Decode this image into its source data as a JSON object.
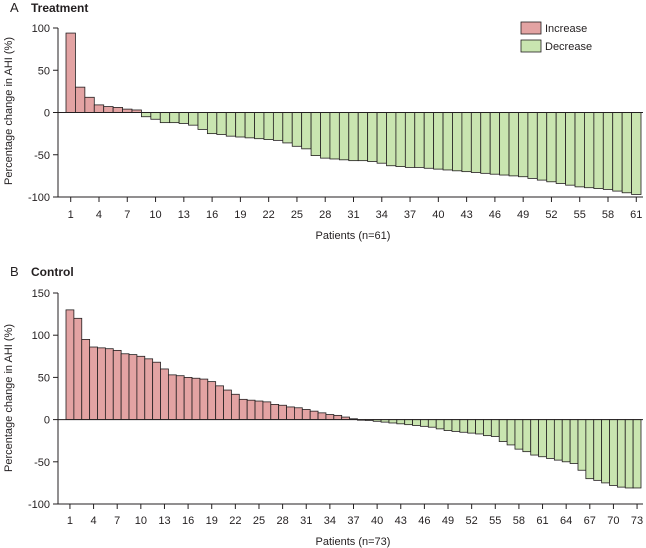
{
  "colors": {
    "increase": "#e3a3a3",
    "decrease": "#c9e5b0",
    "stroke": "#231f20",
    "axis": "#231f20"
  },
  "legend": {
    "increase_label": "Increase",
    "decrease_label": "Decrease",
    "placement": "top-right"
  },
  "chart_data": [
    {
      "type": "bar",
      "panel_letter": "A",
      "title": "Treatment",
      "xlabel": "Patients (n=61)",
      "ylabel": "Percentage change in AHI (%)",
      "ylim": [
        -100,
        100
      ],
      "yticks": [
        100,
        50,
        0,
        -50,
        -100
      ],
      "xtick_labels": [
        "1",
        "4",
        "7",
        "10",
        "13",
        "16",
        "19",
        "22",
        "25",
        "28",
        "31",
        "34",
        "37",
        "40",
        "43",
        "46",
        "49",
        "52",
        "55",
        "58",
        "61"
      ],
      "xtick_positions": [
        1,
        4,
        7,
        10,
        13,
        16,
        19,
        22,
        25,
        28,
        31,
        34,
        37,
        40,
        43,
        46,
        49,
        52,
        55,
        58,
        61
      ],
      "values": [
        94,
        30,
        18,
        9,
        7,
        6,
        4,
        3,
        -5,
        -8,
        -12,
        -12,
        -13,
        -15,
        -20,
        -25,
        -26,
        -28,
        -29,
        -30,
        -31,
        -32,
        -33,
        -36,
        -40,
        -43,
        -51,
        -54,
        -55,
        -56,
        -57,
        -57,
        -58,
        -60,
        -63,
        -64,
        -65,
        -65,
        -66,
        -67,
        -68,
        -69,
        -70,
        -71,
        -72,
        -73,
        -74,
        -75,
        -76,
        -78,
        -80,
        -82,
        -84,
        -86,
        -88,
        -89,
        -90,
        -91,
        -93,
        -95,
        -97
      ]
    },
    {
      "type": "bar",
      "panel_letter": "B",
      "title": "Control",
      "xlabel": "Patients (n=73)",
      "ylabel": "Percentage change in AHI (%)",
      "ylim": [
        -100,
        150
      ],
      "yticks": [
        150,
        100,
        50,
        0,
        -50,
        -100
      ],
      "xtick_labels": [
        "1",
        "4",
        "7",
        "10",
        "13",
        "16",
        "19",
        "22",
        "25",
        "28",
        "31",
        "34",
        "37",
        "40",
        "43",
        "46",
        "49",
        "52",
        "55",
        "58",
        "61",
        "64",
        "67",
        "70",
        "73"
      ],
      "xtick_positions": [
        1,
        4,
        7,
        10,
        13,
        16,
        19,
        22,
        25,
        28,
        31,
        34,
        37,
        40,
        43,
        46,
        49,
        52,
        55,
        58,
        61,
        64,
        67,
        70,
        73
      ],
      "values": [
        130,
        120,
        95,
        86,
        85,
        84,
        82,
        78,
        77,
        75,
        72,
        68,
        60,
        53,
        52,
        50,
        49,
        48,
        45,
        40,
        35,
        30,
        24,
        23,
        22,
        21,
        18,
        17,
        15,
        14,
        12,
        10,
        8,
        6,
        5,
        3,
        1,
        0,
        -1,
        -2,
        -3,
        -4,
        -5,
        -6,
        -7,
        -8,
        -9,
        -11,
        -13,
        -14,
        -15,
        -16,
        -17,
        -19,
        -20,
        -26,
        -30,
        -35,
        -38,
        -42,
        -44,
        -46,
        -48,
        -50,
        -52,
        -60,
        -70,
        -72,
        -75,
        -78,
        -80,
        -81,
        -81
      ]
    }
  ]
}
